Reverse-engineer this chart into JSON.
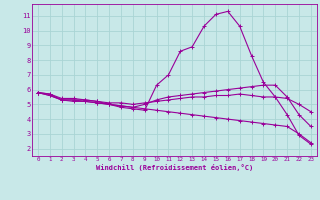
{
  "xlabel": "Windchill (Refroidissement éolien,°C)",
  "xlim": [
    -0.5,
    23.5
  ],
  "ylim": [
    1.5,
    11.8
  ],
  "yticks": [
    2,
    3,
    4,
    5,
    6,
    7,
    8,
    9,
    10,
    11
  ],
  "xticks": [
    0,
    1,
    2,
    3,
    4,
    5,
    6,
    7,
    8,
    9,
    10,
    11,
    12,
    13,
    14,
    15,
    16,
    17,
    18,
    19,
    20,
    21,
    22,
    23
  ],
  "bg_color": "#c8e8e8",
  "line_color": "#990099",
  "grid_color": "#aad4d4",
  "lines": [
    {
      "x": [
        0,
        1,
        2,
        3,
        4,
        5,
        6,
        7,
        8,
        9,
        10,
        11,
        12,
        13,
        14,
        15,
        16,
        17,
        18,
        19,
        20,
        21,
        22,
        23
      ],
      "y": [
        5.8,
        5.7,
        5.3,
        5.3,
        5.3,
        5.2,
        5.0,
        4.8,
        4.7,
        4.6,
        6.3,
        7.0,
        8.6,
        8.9,
        10.3,
        11.1,
        11.3,
        10.3,
        8.3,
        6.5,
        5.5,
        4.3,
        2.9,
        2.3
      ]
    },
    {
      "x": [
        0,
        1,
        2,
        3,
        4,
        5,
        6,
        7,
        8,
        9,
        10,
        11,
        12,
        13,
        14,
        15,
        16,
        17,
        18,
        19,
        20,
        21,
        22,
        23
      ],
      "y": [
        5.8,
        5.6,
        5.3,
        5.3,
        5.2,
        5.1,
        5.0,
        4.9,
        4.8,
        5.0,
        5.3,
        5.5,
        5.6,
        5.7,
        5.8,
        5.9,
        6.0,
        6.1,
        6.2,
        6.3,
        6.3,
        5.5,
        4.3,
        3.5
      ]
    },
    {
      "x": [
        0,
        1,
        2,
        3,
        4,
        5,
        6,
        7,
        8,
        9,
        10,
        11,
        12,
        13,
        14,
        15,
        16,
        17,
        18,
        19,
        20,
        21,
        22,
        23
      ],
      "y": [
        5.8,
        5.7,
        5.4,
        5.4,
        5.3,
        5.2,
        5.1,
        5.1,
        5.0,
        5.1,
        5.2,
        5.3,
        5.4,
        5.5,
        5.5,
        5.6,
        5.6,
        5.7,
        5.6,
        5.5,
        5.5,
        5.4,
        5.0,
        4.5
      ]
    },
    {
      "x": [
        0,
        1,
        2,
        3,
        4,
        5,
        6,
        7,
        8,
        9,
        10,
        11,
        12,
        13,
        14,
        15,
        16,
        17,
        18,
        19,
        20,
        21,
        22,
        23
      ],
      "y": [
        5.8,
        5.6,
        5.3,
        5.2,
        5.2,
        5.1,
        5.0,
        4.9,
        4.8,
        4.7,
        4.6,
        4.5,
        4.4,
        4.3,
        4.2,
        4.1,
        4.0,
        3.9,
        3.8,
        3.7,
        3.6,
        3.5,
        3.0,
        2.4
      ]
    }
  ]
}
